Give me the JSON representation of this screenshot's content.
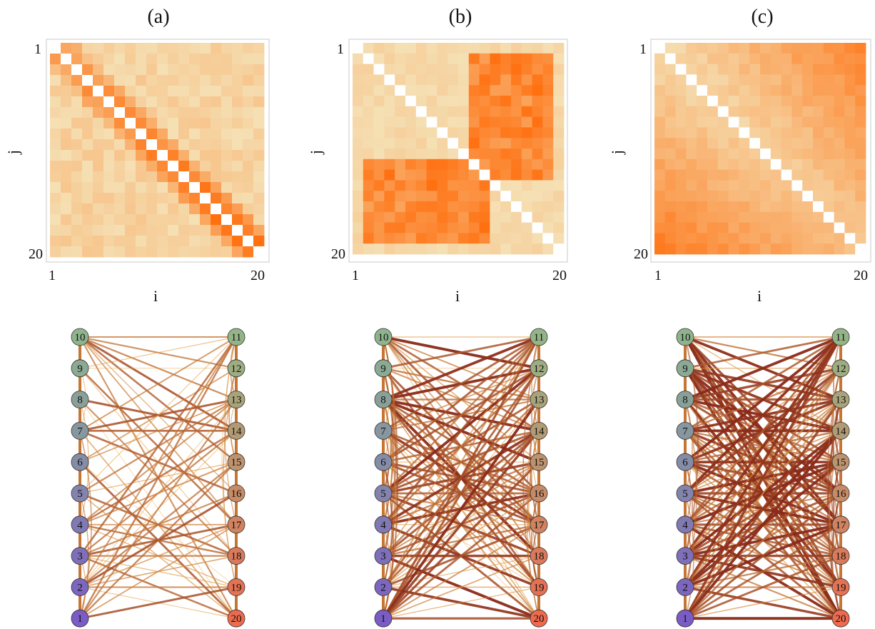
{
  "panels": [
    {
      "label": "(a)",
      "heatmap": {
        "tick_first": "1",
        "tick_last": "20",
        "xlabel": "i",
        "ylabel": "j",
        "pattern": "banded-near-diagonal"
      },
      "network": {
        "left_nodes": [
          "10",
          "9",
          "8",
          "7",
          "6",
          "5",
          "4",
          "3",
          "2",
          "1"
        ],
        "right_nodes": [
          "11",
          "12",
          "13",
          "14",
          "15",
          "16",
          "17",
          "18",
          "19",
          "20"
        ],
        "edge_density": "sparse"
      }
    },
    {
      "label": "(b)",
      "heatmap": {
        "tick_first": "1",
        "tick_last": "20",
        "xlabel": "i",
        "ylabel": "j",
        "pattern": "mid-block"
      },
      "network": {
        "left_nodes": [
          "10",
          "9",
          "8",
          "7",
          "6",
          "5",
          "4",
          "3",
          "2",
          "1"
        ],
        "right_nodes": [
          "11",
          "12",
          "13",
          "14",
          "15",
          "16",
          "17",
          "18",
          "19",
          "20"
        ],
        "edge_density": "medium"
      }
    },
    {
      "label": "(c)",
      "heatmap": {
        "tick_first": "1",
        "tick_last": "20",
        "xlabel": "i",
        "ylabel": "j",
        "pattern": "far-block"
      },
      "network": {
        "left_nodes": [
          "10",
          "9",
          "8",
          "7",
          "6",
          "5",
          "4",
          "3",
          "2",
          "1"
        ],
        "right_nodes": [
          "11",
          "12",
          "13",
          "14",
          "15",
          "16",
          "17",
          "18",
          "19",
          "20"
        ],
        "edge_density": "dense"
      }
    }
  ],
  "colors": {
    "heat_low": "#f4e6bd",
    "heat_high": "#ff7010",
    "diagonal": "#ffffff",
    "edge_light": "#f5b34a",
    "edge_dark": "#8a2a18",
    "node_low": "#7a5cc4",
    "node_mid": "#8fb88a",
    "node_high": "#ee6a4e"
  }
}
